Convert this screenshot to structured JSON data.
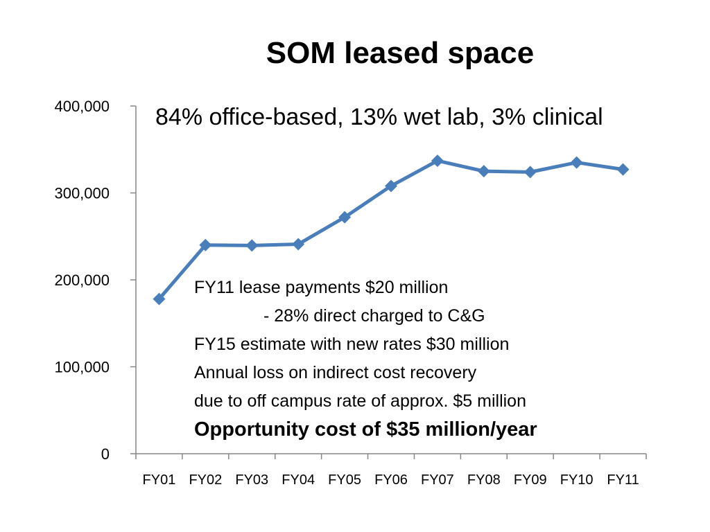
{
  "chart_data": {
    "type": "line",
    "title": "SOM leased space",
    "subtitle": "84% office-based, 13% wet lab, 3% clinical",
    "categories": [
      "FY01",
      "FY02",
      "FY03",
      "FY04",
      "FY05",
      "FY06",
      "FY07",
      "FY08",
      "FY09",
      "FY10",
      "FY11"
    ],
    "series": [
      {
        "values": [
          178000,
          240000,
          239500,
          241000,
          272000,
          308000,
          337000,
          325000,
          324000,
          335000,
          327000
        ]
      }
    ],
    "ylim": [
      0,
      400000
    ],
    "yticks": [
      0,
      100000,
      200000,
      300000,
      400000
    ],
    "ytick_labels": [
      "0",
      "100,000",
      "200,000",
      "300,000",
      "400,000"
    ],
    "grid": false,
    "line_color": "#4A7EBB",
    "annotations": {
      "line1": "FY11 lease payments $20 million",
      "line2": "- 28% direct charged to C&G",
      "line3": "FY15 estimate with new rates $30 million",
      "line4": "Annual loss on indirect cost recovery",
      "line5": "due to off campus rate of approx. $5 million",
      "line6": "Opportunity cost of $35 million/year"
    }
  }
}
